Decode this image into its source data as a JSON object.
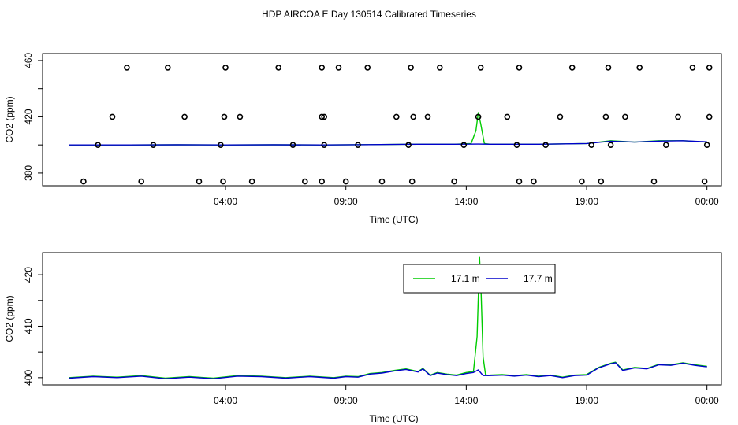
{
  "title": "HDP AIRCOA E  Day 130514  Calibrated Timeseries",
  "colors": {
    "green": "#00cc00",
    "blue": "#0000cc",
    "axis": "#000000"
  },
  "chart_data": [
    {
      "type": "line",
      "xlabel": "Time (UTC)",
      "ylabel": "CO2 (ppm)",
      "xlim": [
        -3.6,
        24.6
      ],
      "ylim": [
        371,
        465
      ],
      "xtick_values": [
        4,
        9,
        14,
        19,
        24
      ],
      "xtick_labels": [
        "04:00",
        "09:00",
        "14:00",
        "19:00",
        "00:00"
      ],
      "ytick_values": [
        380,
        420,
        460
      ],
      "ytick_labels": [
        "380",
        "420",
        "460"
      ],
      "series": [
        {
          "color": "#00cc00",
          "x": [
            -2.5,
            0,
            2,
            4,
            6,
            8,
            10,
            12,
            13.5,
            14.2,
            14.4,
            14.5,
            14.6,
            14.75,
            15,
            17,
            19,
            20,
            21,
            22,
            23,
            24
          ],
          "y": [
            400,
            400,
            400.1,
            400,
            400.1,
            400,
            400.2,
            400.5,
            400.5,
            401,
            410,
            423,
            415,
            401,
            400.5,
            400.5,
            401,
            403,
            402,
            403,
            403,
            402
          ]
        },
        {
          "color": "#0000cc",
          "x": [
            -2.5,
            0,
            2,
            4,
            6,
            8,
            10,
            12,
            13.5,
            14.5,
            15,
            17,
            19,
            20,
            21,
            22,
            23,
            24
          ],
          "y": [
            400,
            400,
            400.1,
            400,
            400.1,
            400,
            400.2,
            400.5,
            400.5,
            400.6,
            400.5,
            400.5,
            401,
            402.6,
            402,
            402.7,
            403,
            402.2
          ]
        }
      ],
      "points": {
        "color": "#000000",
        "x": [
          -1.9,
          -1.3,
          -0.7,
          -0.1,
          0.5,
          1,
          1.6,
          2.3,
          2.9,
          3.8,
          3.9,
          3.95,
          4,
          4.6,
          5.1,
          6.2,
          6.8,
          7.3,
          8,
          8,
          8,
          8.1,
          8.1,
          8.7,
          9,
          9.5,
          9.9,
          10.5,
          11.1,
          11.6,
          11.7,
          11.75,
          11.8,
          12.4,
          12.9,
          13.5,
          13.9,
          14.5,
          14.6,
          15.7,
          16.1,
          16.2,
          16.2,
          16.8,
          17.3,
          17.9,
          18.4,
          18.8,
          19.2,
          19.6,
          19.8,
          19.9,
          20,
          20.6,
          21.2,
          21.8,
          22.3,
          22.8,
          23.4,
          23.9,
          24,
          24.1,
          24.1
        ],
        "y": [
          374,
          400,
          420,
          455,
          374,
          400,
          455,
          420,
          374,
          400,
          374,
          420,
          455,
          420,
          374,
          455,
          400,
          374,
          420,
          455,
          374,
          400,
          420,
          455,
          374,
          400,
          455,
          374,
          420,
          400,
          455,
          374,
          420,
          420,
          455,
          374,
          400,
          420,
          455,
          420,
          400,
          374,
          455,
          374,
          400,
          420,
          455,
          374,
          400,
          374,
          420,
          455,
          400,
          420,
          455,
          374,
          400,
          420,
          455,
          374,
          400,
          420,
          455
        ]
      }
    },
    {
      "type": "line",
      "xlabel": "Time (UTC)",
      "ylabel": "CO2 (ppm)",
      "xlim": [
        -3.6,
        24.6
      ],
      "ylim": [
        398.6,
        424.3
      ],
      "xtick_values": [
        4,
        9,
        14,
        19,
        24
      ],
      "xtick_labels": [
        "04:00",
        "09:00",
        "14:00",
        "19:00",
        "00:00"
      ],
      "ytick_values": [
        400,
        410,
        420
      ],
      "ytick_labels": [
        "400",
        "410",
        "420"
      ],
      "legend": {
        "placement": "top-center",
        "entries": [
          {
            "name": "17.1 m",
            "color": "#00cc00"
          },
          {
            "name": "17.7 m",
            "color": "#0000cc"
          }
        ]
      },
      "series": [
        {
          "name": "17.1 m",
          "color": "#00cc00",
          "x": [
            -2.5,
            -1.5,
            -0.5,
            0.5,
            1.5,
            2.5,
            3.5,
            4.5,
            5.5,
            6.5,
            7.5,
            8.5,
            9,
            9.5,
            10,
            10.5,
            11,
            11.5,
            12,
            12.2,
            12.5,
            12.8,
            13.2,
            13.6,
            14,
            14.3,
            14.45,
            14.55,
            14.62,
            14.7,
            14.8,
            14.9,
            15,
            15.5,
            16,
            16.5,
            17,
            17.5,
            18,
            18.5,
            19,
            19.5,
            20,
            20.2,
            20.5,
            21,
            21.5,
            22,
            22.5,
            23,
            23.5,
            24
          ],
          "y": [
            400,
            400.3,
            400.1,
            400.4,
            399.9,
            400.2,
            399.9,
            400.4,
            400.3,
            400,
            400.3,
            400,
            400.3,
            400.2,
            400.8,
            401,
            401.4,
            401.7,
            401.2,
            401.8,
            400.5,
            401,
            400.7,
            400.5,
            401,
            401.2,
            408,
            423.5,
            416,
            404,
            400.6,
            400.4,
            400.5,
            400.6,
            400.4,
            400.6,
            400.3,
            400.5,
            400.1,
            400.5,
            400.6,
            402,
            402.8,
            403,
            401.5,
            402,
            401.8,
            402.6,
            402.5,
            402.9,
            402.5,
            402.2
          ]
        },
        {
          "name": "17.7 m",
          "color": "#0000cc",
          "x": [
            -2.5,
            -1.5,
            -0.5,
            0.5,
            1.5,
            2.5,
            3.5,
            4.5,
            5.5,
            6.5,
            7.5,
            8.5,
            9,
            9.5,
            10,
            10.5,
            11,
            11.5,
            12,
            12.2,
            12.5,
            12.8,
            13.2,
            13.6,
            14,
            14.3,
            14.5,
            14.7,
            15,
            15.5,
            16,
            16.5,
            17,
            17.5,
            18,
            18.5,
            19,
            19.5,
            20,
            20.2,
            20.5,
            21,
            21.5,
            22,
            22.5,
            23,
            23.5,
            24
          ],
          "y": [
            399.9,
            400.2,
            400,
            400.3,
            399.8,
            400.1,
            399.8,
            400.3,
            400.2,
            399.9,
            400.2,
            399.9,
            400.2,
            400.1,
            400.7,
            400.9,
            401.3,
            401.6,
            401.1,
            401.7,
            400.4,
            400.9,
            400.6,
            400.4,
            400.8,
            401,
            401.5,
            400.4,
            400.4,
            400.5,
            400.3,
            400.5,
            400.2,
            400.4,
            400,
            400.4,
            400.5,
            401.9,
            402.7,
            402.9,
            401.4,
            401.9,
            401.7,
            402.5,
            402.4,
            402.8,
            402.4,
            402.1
          ]
        }
      ]
    }
  ]
}
